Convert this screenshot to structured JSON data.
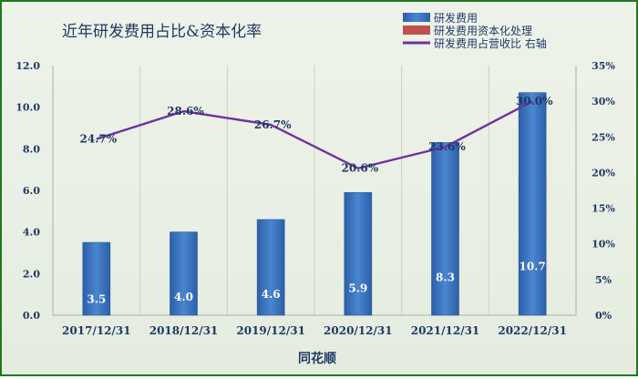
{
  "chart_data": {
    "type": "bar",
    "title": "近年研发费用占比&资本化率",
    "xlabel": "同花顺",
    "categories": [
      "2017/12/31",
      "2018/12/31",
      "2019/12/31",
      "2020/12/31",
      "2021/12/31",
      "2022/12/31"
    ],
    "series": [
      {
        "name": "研发费用",
        "type": "bar",
        "axis": "left",
        "color": "#3f78c4",
        "values": [
          3.5,
          4.0,
          4.6,
          5.9,
          8.3,
          10.7
        ],
        "labels": [
          "3.5",
          "4.0",
          "4.6",
          "5.9",
          "8.3",
          "10.7"
        ]
      },
      {
        "name": "研发费用资本化处理",
        "type": "bar",
        "axis": "left",
        "color": "#c0504d",
        "values": [
          0,
          0,
          0,
          0,
          0,
          0
        ]
      },
      {
        "name": "研发费用占营收比 右轴",
        "type": "line",
        "axis": "right",
        "color": "#7030a0",
        "values": [
          24.7,
          28.6,
          26.7,
          20.6,
          23.6,
          30.0
        ],
        "labels": [
          "24.7%",
          "28.6%",
          "26.7%",
          "20.6%",
          "23.6%",
          "30.0%"
        ]
      }
    ],
    "y_left": {
      "min": 0,
      "max": 12,
      "step": 2,
      "ticks": [
        "0.0",
        "2.0",
        "4.0",
        "6.0",
        "8.0",
        "10.0",
        "12.0"
      ]
    },
    "y_right": {
      "min": 0,
      "max": 35,
      "step": 5,
      "ticks": [
        "0%",
        "5%",
        "10%",
        "15%",
        "20%",
        "25%",
        "30%",
        "35%"
      ]
    },
    "grid": "vertical",
    "legend_position": "top-right"
  }
}
